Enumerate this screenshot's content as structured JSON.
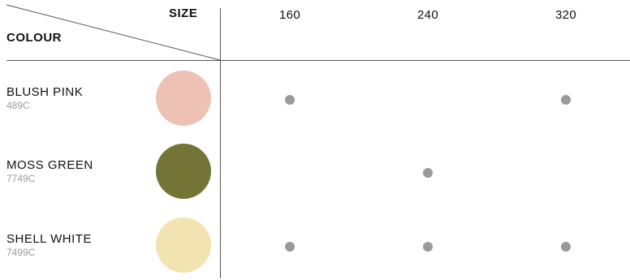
{
  "header": {
    "size_label": "SIZE",
    "colour_label": "COLOUR"
  },
  "sizes": [
    "160",
    "240",
    "320"
  ],
  "rows": [
    {
      "name": "BLUSH PINK",
      "code": "489C",
      "swatch_color": "#EDC2B4",
      "available": [
        true,
        false,
        true
      ]
    },
    {
      "name": "MOSS GREEN",
      "code": "7749C",
      "swatch_color": "#737436",
      "available": [
        false,
        true,
        false
      ]
    },
    {
      "name": "SHELL WHITE",
      "code": "7499C",
      "swatch_color": "#F1E4B1",
      "available": [
        true,
        true,
        true
      ]
    }
  ],
  "colors": {
    "line": "#555555",
    "dot": "#9A9A9A",
    "code_text": "#9A9A9A"
  }
}
